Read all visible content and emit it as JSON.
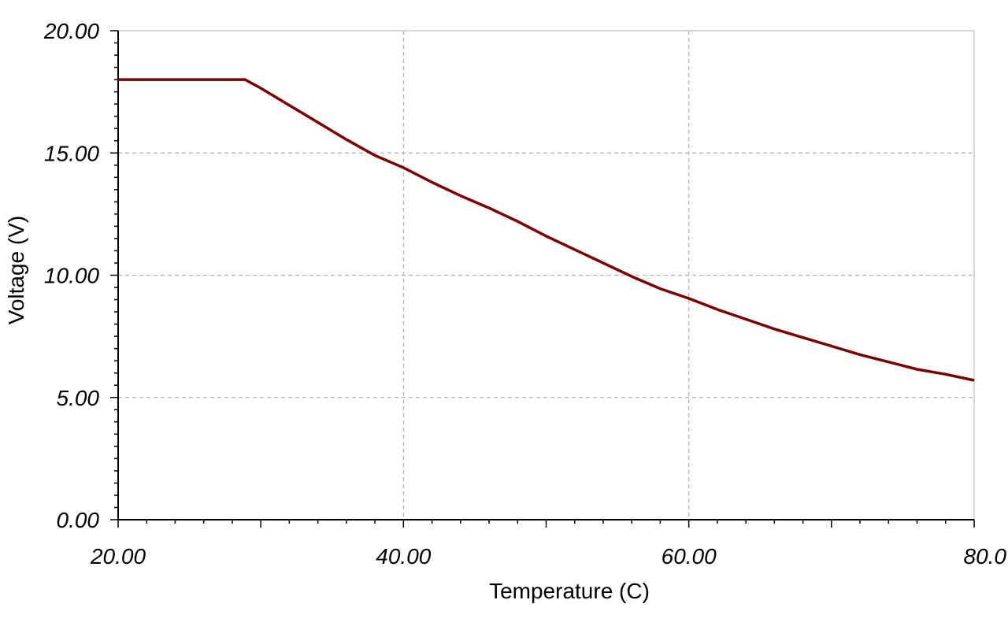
{
  "chart_data": {
    "type": "line",
    "title": "",
    "xlabel": "Temperature (C)",
    "ylabel": "Voltage (V)",
    "xlim": [
      20,
      80
    ],
    "ylim": [
      0,
      20
    ],
    "x_ticks": [
      "20.00",
      "40.00",
      "60.00",
      "80.0"
    ],
    "y_ticks": [
      "0.00",
      "5.00",
      "10.00",
      "15.00",
      "20.00"
    ],
    "x_tick_values": [
      20,
      40,
      60,
      80
    ],
    "y_tick_values": [
      0,
      5,
      10,
      15,
      20
    ],
    "grid": true,
    "legend": "none",
    "series": [
      {
        "color": "#800000",
        "x": [
          20,
          22,
          24,
          26,
          28,
          28.9,
          30,
          32,
          34,
          36,
          38,
          40,
          42,
          44,
          46,
          48,
          50,
          52,
          54,
          56,
          58,
          60,
          62,
          64,
          66,
          68,
          70,
          72,
          74,
          76,
          78,
          80
        ],
        "y": [
          18.0,
          18.0,
          18.0,
          18.0,
          18.0,
          18.0,
          17.65,
          16.95,
          16.25,
          15.55,
          14.9,
          14.4,
          13.8,
          13.25,
          12.75,
          12.2,
          11.6,
          11.05,
          10.5,
          9.95,
          9.45,
          9.05,
          8.6,
          8.2,
          7.8,
          7.45,
          7.1,
          6.75,
          6.45,
          6.15,
          5.95,
          5.7
        ]
      }
    ]
  },
  "colors": {
    "line": "#800000",
    "grid": "#b0b0b0",
    "axis": "#000000",
    "background": "#ffffff"
  }
}
